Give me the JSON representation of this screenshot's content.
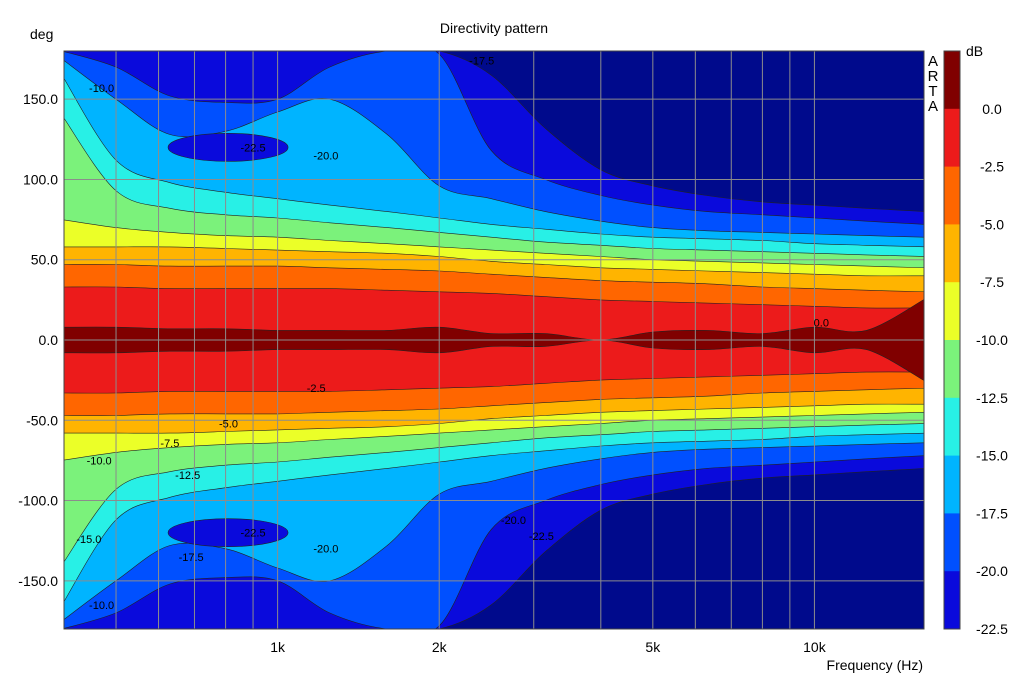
{
  "chart_data": {
    "type": "heatmap",
    "title": "Directivity pattern",
    "xlabel": "Frequency (Hz)",
    "ylabel": "deg",
    "x_scale": "log",
    "xlim": [
      400,
      16000
    ],
    "ylim": [
      180,
      -180
    ],
    "x_ticks": [
      {
        "value": 1000,
        "label": "1k"
      },
      {
        "value": 2000,
        "label": "2k"
      },
      {
        "value": 5000,
        "label": "5k"
      },
      {
        "value": 10000,
        "label": "10k"
      }
    ],
    "y_ticks": [
      {
        "value": -150,
        "label": "-150.0"
      },
      {
        "value": -100,
        "label": "-100.0"
      },
      {
        "value": -50,
        "label": "-50.0"
      },
      {
        "value": 0,
        "label": "0.0"
      },
      {
        "value": 50,
        "label": "50.0"
      },
      {
        "value": 100,
        "label": "100.0"
      },
      {
        "value": 150,
        "label": "150.0"
      }
    ],
    "grid": true,
    "watermark": [
      "A",
      "R",
      "T",
      "A"
    ],
    "colorbar": {
      "unit": "dB",
      "levels": [
        0.0,
        -2.5,
        -5.0,
        -7.5,
        -10.0,
        -12.5,
        -15.0,
        -17.5,
        -20.0,
        -22.5
      ],
      "labels": [
        "0.0",
        "-2.5",
        "-5.0",
        "-7.5",
        "-10.0",
        "-12.5",
        "-15.0",
        "-17.5",
        "-20.0",
        "-22.5"
      ],
      "colors": [
        "#800000",
        "#ec1b1b",
        "#ff6600",
        "#ffb400",
        "#ebff28",
        "#7bf27b",
        "#28f0e6",
        "#00b4ff",
        "#0050ff",
        "#0a0adc",
        "#000a8c"
      ]
    },
    "beamwidth_deg": {
      "freq_hz": [
        400,
        500,
        630,
        800,
        1000,
        1250,
        1600,
        2000,
        2500,
        3150,
        4000,
        5000,
        6300,
        8000,
        10000,
        12500,
        16000
      ],
      "bw_0": [
        8,
        8,
        7,
        7,
        6,
        6,
        6,
        8,
        4,
        4,
        0,
        5,
        6,
        4,
        8,
        6,
        26
      ],
      "bw_m2_5": [
        33,
        33,
        32,
        32,
        32,
        32,
        31,
        30,
        29,
        27,
        25,
        24,
        23,
        22,
        21,
        20,
        20
      ],
      "bw_m5": [
        47,
        47,
        46,
        46,
        46,
        45,
        44,
        43,
        41,
        39,
        37,
        36,
        35,
        33,
        32,
        31,
        30
      ],
      "bw_m7_5": [
        58,
        58,
        58,
        57,
        56,
        55,
        54,
        52,
        49,
        47,
        45,
        44,
        43,
        42,
        41,
        40,
        40
      ],
      "bw_m10": [
        75,
        70,
        67,
        65,
        64,
        62,
        60,
        58,
        56,
        54,
        52,
        50,
        49,
        48,
        47,
        46,
        45
      ],
      "bw_m12_5": [
        140,
        93,
        82,
        78,
        76,
        73,
        70,
        67,
        64,
        61,
        59,
        57,
        56,
        55,
        54,
        53,
        52
      ],
      "bw_m15": [
        165,
        112,
        98,
        92,
        88,
        84,
        80,
        76,
        72,
        69,
        66,
        64,
        63,
        62,
        60,
        59,
        58
      ],
      "bw_m17_5": [
        175,
        150,
        128,
        130,
        142,
        150,
        128,
        96,
        88,
        80,
        74,
        70,
        68,
        67,
        66,
        65,
        64
      ],
      "bw_m20": [
        180,
        170,
        152,
        148,
        150,
        170,
        180,
        178,
        118,
        100,
        90,
        84,
        80,
        78,
        76,
        74,
        72
      ],
      "bw_m22_5": [
        180,
        180,
        180,
        180,
        180,
        180,
        180,
        180,
        165,
        132,
        106,
        96,
        90,
        86,
        84,
        82,
        80
      ]
    },
    "side_lobes": [
      {
        "level": -22.5,
        "freq_hz": 900,
        "angle_deg": -120
      },
      {
        "level": -22.5,
        "freq_hz": 900,
        "angle_deg": 120
      }
    ],
    "contour_labels": [
      {
        "text": "-10.0",
        "freq_hz": 470,
        "angle_deg": -165
      },
      {
        "text": "-17.5",
        "freq_hz": 690,
        "angle_deg": -135
      },
      {
        "text": "-15.0",
        "freq_hz": 445,
        "angle_deg": -124
      },
      {
        "text": "-20.0",
        "freq_hz": 1230,
        "angle_deg": -130
      },
      {
        "text": "-22.5",
        "freq_hz": 900,
        "angle_deg": -120
      },
      {
        "text": "-22.5",
        "freq_hz": 3100,
        "angle_deg": -122
      },
      {
        "text": "-20.0",
        "freq_hz": 2750,
        "angle_deg": -112
      },
      {
        "text": "-12.5",
        "freq_hz": 680,
        "angle_deg": -84
      },
      {
        "text": "-10.0",
        "freq_hz": 465,
        "angle_deg": -75
      },
      {
        "text": "-7.5",
        "freq_hz": 630,
        "angle_deg": -64
      },
      {
        "text": "-5.0",
        "freq_hz": 810,
        "angle_deg": -52
      },
      {
        "text": "-2.5",
        "freq_hz": 1180,
        "angle_deg": -30
      },
      {
        "text": "0.0",
        "freq_hz": 10300,
        "angle_deg": 11
      },
      {
        "text": "-22.5",
        "freq_hz": 900,
        "angle_deg": 120
      },
      {
        "text": "-20.0",
        "freq_hz": 1230,
        "angle_deg": 115
      },
      {
        "text": "-10.0",
        "freq_hz": 470,
        "angle_deg": 157
      },
      {
        "text": "-17.5",
        "freq_hz": 2400,
        "angle_deg": 174
      }
    ]
  }
}
